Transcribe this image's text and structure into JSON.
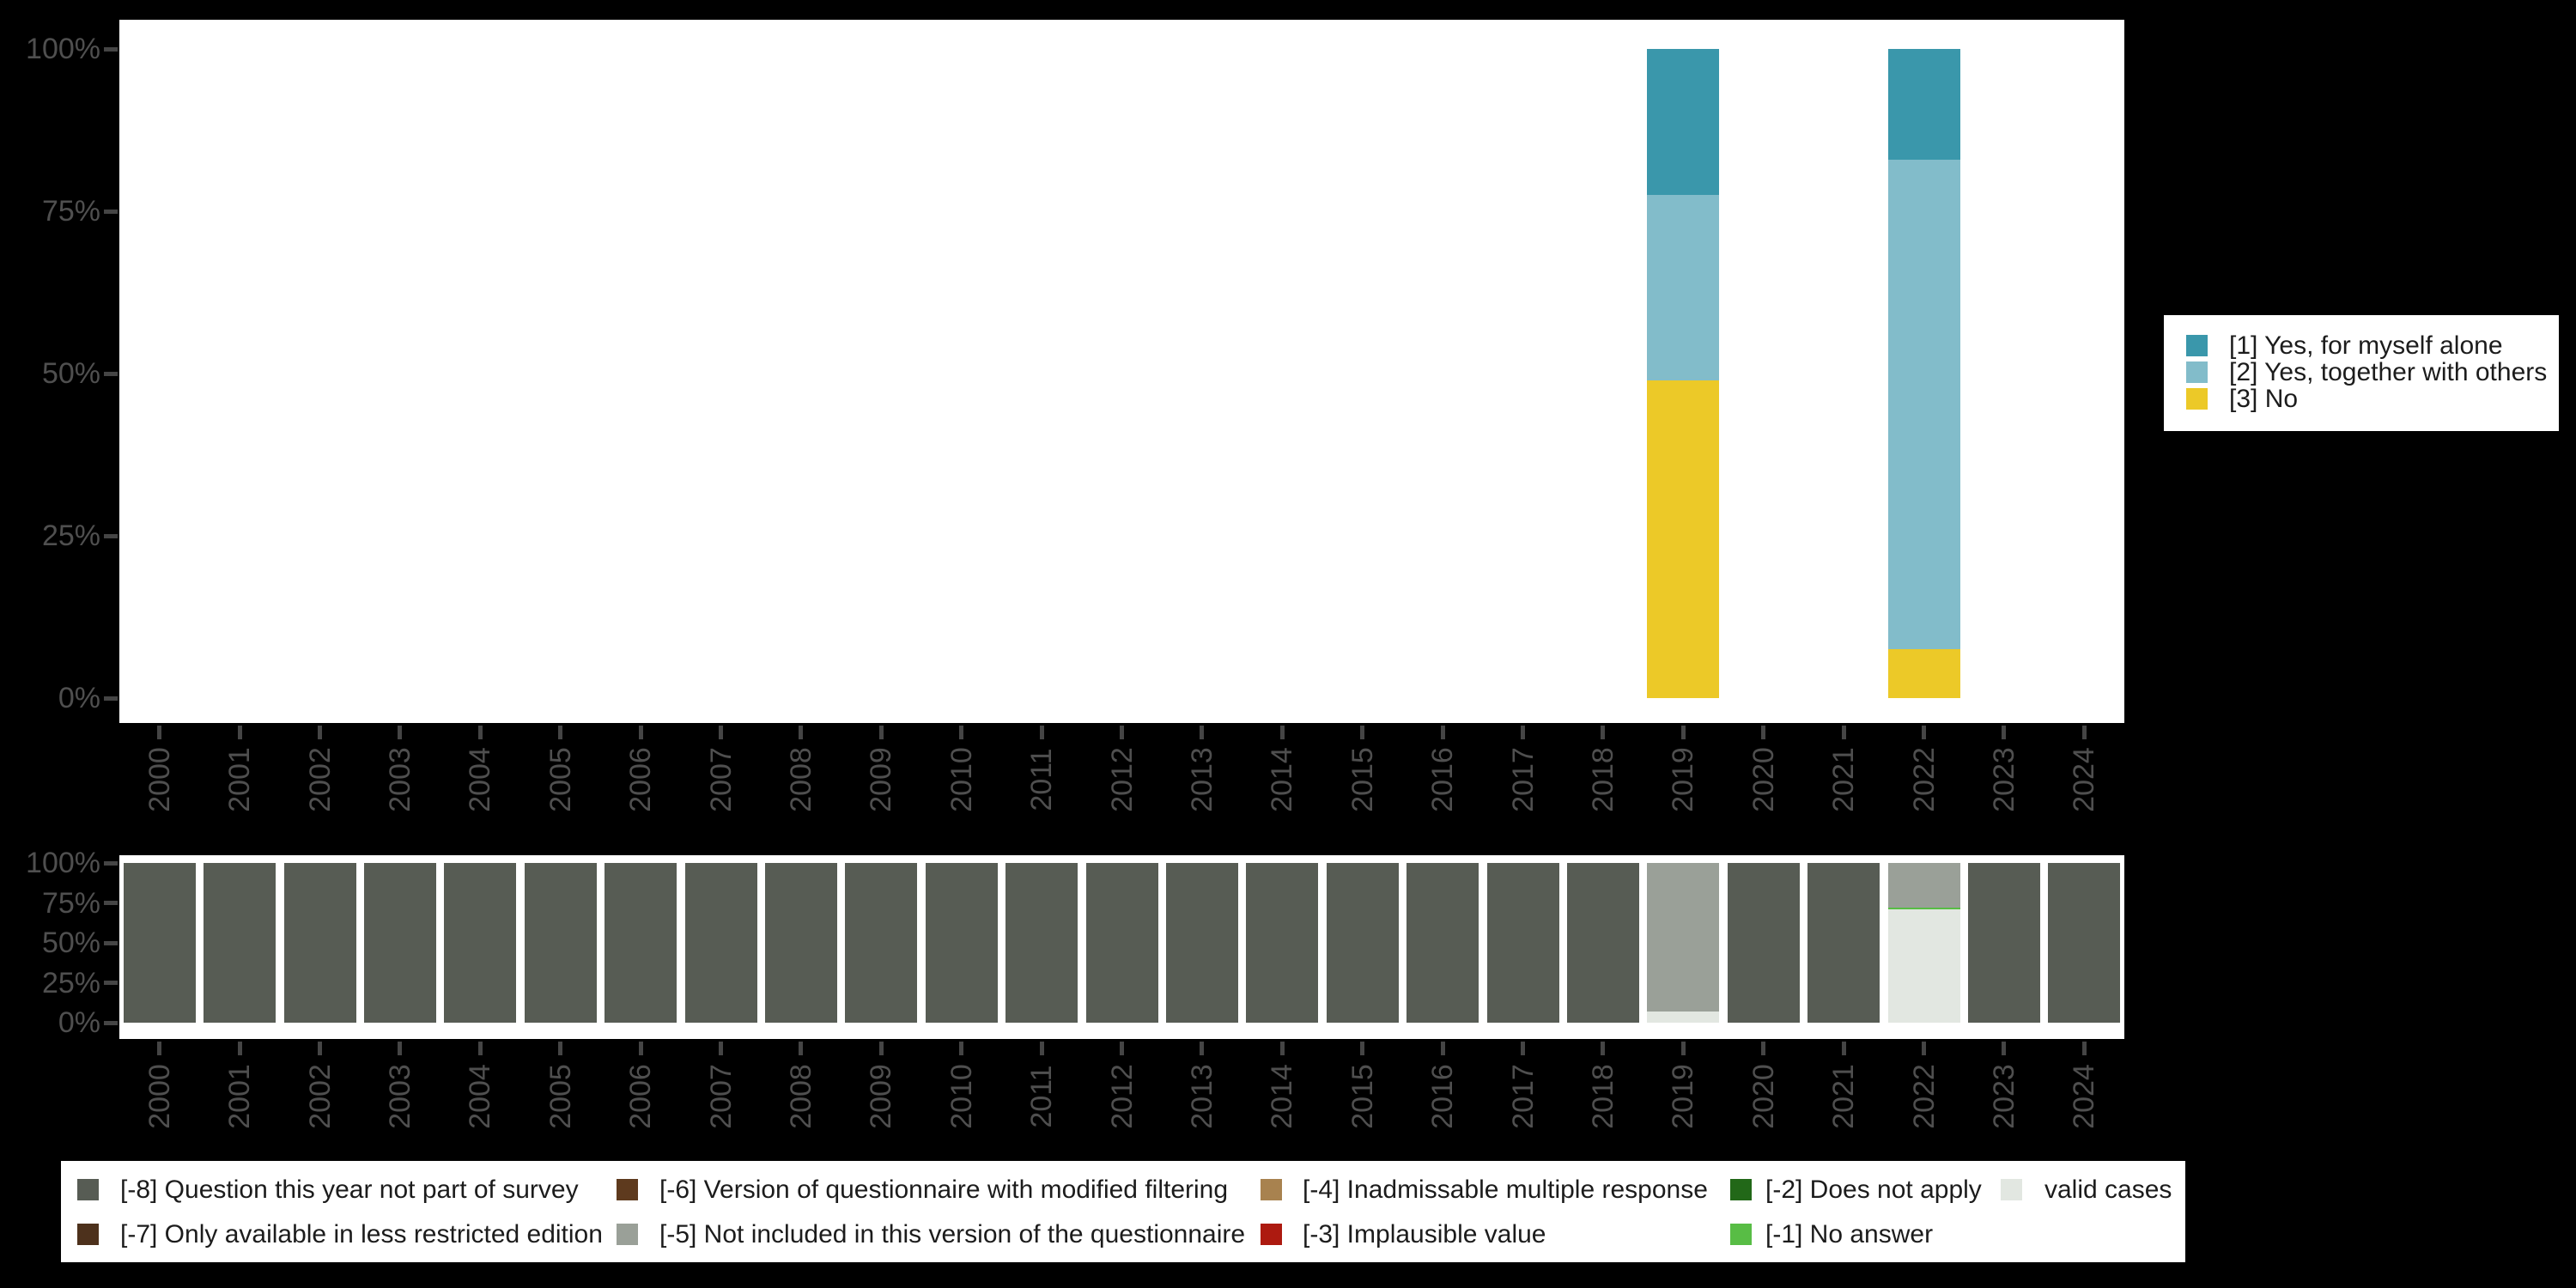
{
  "colors": {
    "background": "#000000",
    "plot_background": "#ffffff",
    "axis_text": "#4f4f4f",
    "tick": "#454545",
    "legend_text": "#1c1c1c"
  },
  "years": [
    "2000",
    "2001",
    "2002",
    "2003",
    "2004",
    "2005",
    "2006",
    "2007",
    "2008",
    "2009",
    "2010",
    "2011",
    "2012",
    "2013",
    "2014",
    "2015",
    "2016",
    "2017",
    "2018",
    "2019",
    "2020",
    "2021",
    "2022",
    "2023",
    "2024"
  ],
  "y_axis_ticks": [
    "100%",
    "75%",
    "50%",
    "25%",
    "0%"
  ],
  "category_legend": {
    "entries": [
      {
        "label": "[1] Yes, for myself alone",
        "color": "#3a97ab"
      },
      {
        "label": "[2] Yes, together with others",
        "color": "#82bcca"
      },
      {
        "label": "[3] No",
        "color": "#ecc928"
      }
    ]
  },
  "missing_legend": {
    "entries": [
      {
        "col": 0,
        "row": 0,
        "label": "[-8] Question this year not part of survey",
        "color": "#575c54"
      },
      {
        "col": 0,
        "row": 1,
        "label": "[-7] Only available in less restricted edition",
        "color": "#4d311c"
      },
      {
        "col": 1,
        "row": 0,
        "label": "[-6] Version of questionnaire with modified filtering",
        "color": "#5e3a1e"
      },
      {
        "col": 1,
        "row": 1,
        "label": "[-5] Not included in this version of the questionnaire",
        "color": "#9aa098"
      },
      {
        "col": 2,
        "row": 0,
        "label": "[-4] Inadmissable multiple response",
        "color": "#a8824f"
      },
      {
        "col": 2,
        "row": 1,
        "label": "[-3] Implausible value",
        "color": "#ad1a10"
      },
      {
        "col": 3,
        "row": 0,
        "label": "[-2] Does not apply",
        "color": "#226818"
      },
      {
        "col": 3,
        "row": 1,
        "label": "[-1] No answer",
        "color": "#58bd45"
      },
      {
        "col": 4,
        "row": 0,
        "label": "valid cases",
        "color": "#e2e7e1"
      }
    ]
  },
  "chart_data": [
    {
      "type": "bar",
      "stacked": true,
      "title": "",
      "xlabel": "",
      "ylabel": "",
      "ylim": [
        0,
        100
      ],
      "y_tick_labels": [
        "100%",
        "75%",
        "50%",
        "25%",
        "0%"
      ],
      "legend_position": "right",
      "categories": [
        "2000",
        "2001",
        "2002",
        "2003",
        "2004",
        "2005",
        "2006",
        "2007",
        "2008",
        "2009",
        "2010",
        "2011",
        "2012",
        "2013",
        "2014",
        "2015",
        "2016",
        "2017",
        "2018",
        "2019",
        "2020",
        "2021",
        "2022",
        "2023",
        "2024"
      ],
      "series": [
        {
          "name": "[1] Yes, for myself alone",
          "color": "#3a97ab",
          "values": [
            0,
            0,
            0,
            0,
            0,
            0,
            0,
            0,
            0,
            0,
            0,
            0,
            0,
            0,
            0,
            0,
            0,
            0,
            0,
            22.5,
            0,
            0,
            17,
            0,
            0
          ]
        },
        {
          "name": "[2] Yes, together with others",
          "color": "#82bcca",
          "values": [
            0,
            0,
            0,
            0,
            0,
            0,
            0,
            0,
            0,
            0,
            0,
            0,
            0,
            0,
            0,
            0,
            0,
            0,
            0,
            28.5,
            0,
            0,
            75.5,
            0,
            0
          ]
        },
        {
          "name": "[3] No",
          "color": "#ecc928",
          "values": [
            0,
            0,
            0,
            0,
            0,
            0,
            0,
            0,
            0,
            0,
            0,
            0,
            0,
            0,
            0,
            0,
            0,
            0,
            0,
            49,
            0,
            0,
            7.5,
            0,
            0
          ]
        }
      ]
    },
    {
      "type": "bar",
      "stacked": true,
      "title": "",
      "xlabel": "",
      "ylabel": "",
      "ylim": [
        0,
        100
      ],
      "y_tick_labels": [
        "100%",
        "75%",
        "50%",
        "25%",
        "0%"
      ],
      "legend_position": "bottom",
      "categories": [
        "2000",
        "2001",
        "2002",
        "2003",
        "2004",
        "2005",
        "2006",
        "2007",
        "2008",
        "2009",
        "2010",
        "2011",
        "2012",
        "2013",
        "2014",
        "2015",
        "2016",
        "2017",
        "2018",
        "2019",
        "2020",
        "2021",
        "2022",
        "2023",
        "2024"
      ],
      "series": [
        {
          "name": "[-8] Question this year not part of survey",
          "color": "#575c54",
          "values": [
            100,
            100,
            100,
            100,
            100,
            100,
            100,
            100,
            100,
            100,
            100,
            100,
            100,
            100,
            100,
            100,
            100,
            100,
            100,
            0,
            100,
            100,
            0,
            100,
            100
          ]
        },
        {
          "name": "[-7] Only available in less restricted edition",
          "color": "#4d311c",
          "values": [
            0,
            0,
            0,
            0,
            0,
            0,
            0,
            0,
            0,
            0,
            0,
            0,
            0,
            0,
            0,
            0,
            0,
            0,
            0,
            0,
            0,
            0,
            0,
            0,
            0
          ]
        },
        {
          "name": "[-6] Version of questionnaire with modified filtering",
          "color": "#5e3a1e",
          "values": [
            0,
            0,
            0,
            0,
            0,
            0,
            0,
            0,
            0,
            0,
            0,
            0,
            0,
            0,
            0,
            0,
            0,
            0,
            0,
            0,
            0,
            0,
            0,
            0,
            0
          ]
        },
        {
          "name": "[-5] Not included in this version of the questionnaire",
          "color": "#9aa098",
          "values": [
            0,
            0,
            0,
            0,
            0,
            0,
            0,
            0,
            0,
            0,
            0,
            0,
            0,
            0,
            0,
            0,
            0,
            0,
            0,
            93,
            0,
            0,
            28,
            0,
            0
          ]
        },
        {
          "name": "[-4] Inadmissable multiple response",
          "color": "#a8824f",
          "values": [
            0,
            0,
            0,
            0,
            0,
            0,
            0,
            0,
            0,
            0,
            0,
            0,
            0,
            0,
            0,
            0,
            0,
            0,
            0,
            0,
            0,
            0,
            0,
            0,
            0
          ]
        },
        {
          "name": "[-3] Implausible value",
          "color": "#ad1a10",
          "values": [
            0,
            0,
            0,
            0,
            0,
            0,
            0,
            0,
            0,
            0,
            0,
            0,
            0,
            0,
            0,
            0,
            0,
            0,
            0,
            0,
            0,
            0,
            0,
            0,
            0
          ]
        },
        {
          "name": "[-2] Does not apply",
          "color": "#226818",
          "values": [
            0,
            0,
            0,
            0,
            0,
            0,
            0,
            0,
            0,
            0,
            0,
            0,
            0,
            0,
            0,
            0,
            0,
            0,
            0,
            0,
            0,
            0,
            0,
            0,
            0
          ]
        },
        {
          "name": "[-1] No answer",
          "color": "#58bd45",
          "values": [
            0,
            0,
            0,
            0,
            0,
            0,
            0,
            0,
            0,
            0,
            0,
            0,
            0,
            0,
            0,
            0,
            0,
            0,
            0,
            0,
            0,
            0,
            1,
            0,
            0
          ]
        },
        {
          "name": "valid cases",
          "color": "#e2e7e1",
          "values": [
            0,
            0,
            0,
            0,
            0,
            0,
            0,
            0,
            0,
            0,
            0,
            0,
            0,
            0,
            0,
            0,
            0,
            0,
            0,
            7,
            0,
            0,
            71,
            0,
            0
          ]
        }
      ]
    }
  ]
}
